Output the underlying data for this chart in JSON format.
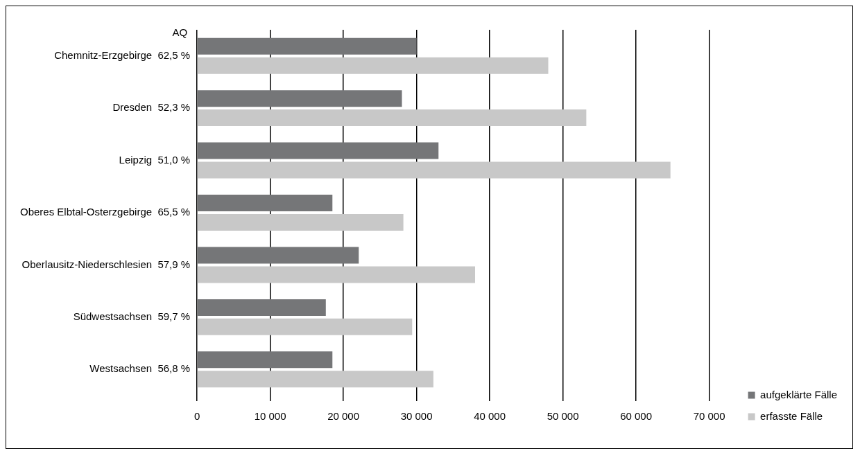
{
  "chart_data": {
    "type": "bar",
    "orientation": "horizontal",
    "categories": [
      "Chemnitz-Erzgebirge  62,5 %",
      "Dresden  52,3 %",
      "Leipzig  51,0 %",
      "Oberes Elbtal-Osterzgebirge  65,5 %",
      "Oberlausitz-Niederschlesien  57,9 %",
      "Südwestsachsen  59,7 %",
      "Westsachsen  56,8 %"
    ],
    "series": [
      {
        "name": "aufgeklärte Fälle",
        "color": "#757678",
        "values": [
          30000,
          28000,
          33000,
          18500,
          22100,
          17600,
          18500
        ]
      },
      {
        "name": "erfasste Fälle",
        "color": "#c8c8c8",
        "values": [
          48000,
          53200,
          64700,
          28200,
          38000,
          29400,
          32300
        ]
      }
    ],
    "xlim": [
      0,
      70000
    ],
    "xticks": [
      {
        "value": 0,
        "label": "0"
      },
      {
        "value": 10000,
        "label": "10 000"
      },
      {
        "value": 20000,
        "label": "20 000"
      },
      {
        "value": 30000,
        "label": "30 000"
      },
      {
        "value": 40000,
        "label": "40 000"
      },
      {
        "value": 50000,
        "label": "50 000"
      },
      {
        "value": 60000,
        "label": "60 000"
      },
      {
        "value": 70000,
        "label": "70 000"
      }
    ],
    "grid": "x",
    "legend": "bottom right",
    "annotations": [
      "AQ"
    ]
  }
}
